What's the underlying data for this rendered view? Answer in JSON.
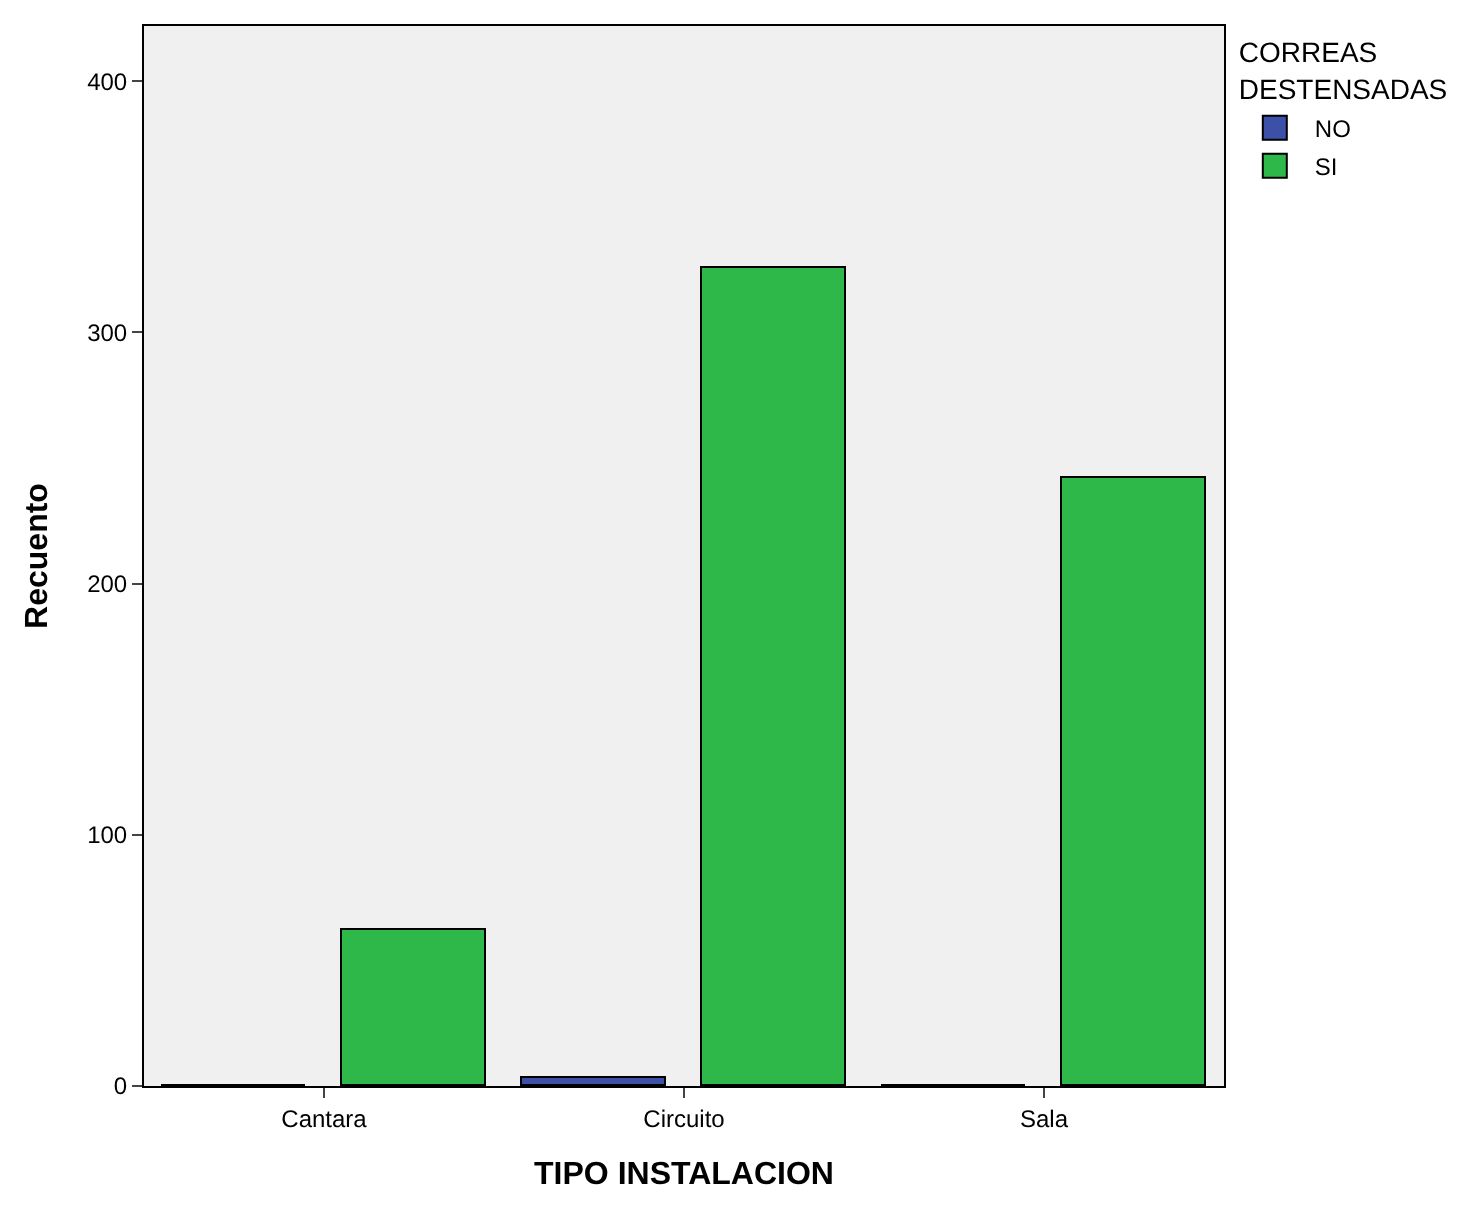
{
  "chart_data": {
    "type": "bar",
    "xlabel": "TIPO INSTALACION",
    "ylabel": "Recuento",
    "legend_title": "CORREAS DESTENSADAS",
    "categories": [
      "Cantara",
      "Circuito",
      "Sala"
    ],
    "series": [
      {
        "name": "NO",
        "color": "#3c50a8",
        "values": [
          0,
          3,
          0
        ]
      },
      {
        "name": "SI",
        "color": "#2eb84a",
        "values": [
          62,
          326,
          242
        ]
      }
    ],
    "ylim": [
      0,
      422
    ],
    "yticks": [
      0,
      100,
      200,
      300,
      400
    ],
    "grid": false,
    "legend": "top right"
  }
}
